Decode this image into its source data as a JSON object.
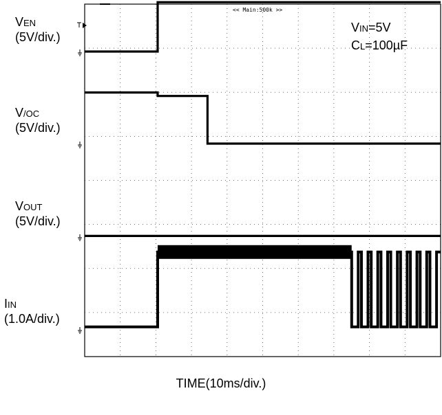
{
  "chart_data": {
    "type": "line",
    "title": "",
    "xlabel": "TIME(10ms/div.)",
    "trigger_label": "<< Main:500k >>",
    "conditions": [
      {
        "prefix": "V",
        "sub": "IN",
        "rest": "=5V"
      },
      {
        "prefix": "C",
        "sub": "L",
        "rest": "=100µF"
      }
    ],
    "x_divisions": 10,
    "y_divisions": 8,
    "x_unit": "ms",
    "x_per_div": 10,
    "grid": true,
    "channels": [
      {
        "name_prefix": "V",
        "name_sub": "EN",
        "scale": "(5V/div.)",
        "unit": "V",
        "per_div": 5,
        "points": [
          [
            0,
            0
          ],
          [
            20.5,
            0
          ],
          [
            20.5,
            5.6
          ],
          [
            100,
            5.6
          ]
        ]
      },
      {
        "name_prefix": "V",
        "name_sub": "/OC",
        "scale": "(5V/div.)",
        "unit": "V",
        "per_div": 5,
        "points": [
          [
            0,
            5.8
          ],
          [
            20.5,
            5.8
          ],
          [
            20.5,
            5.4
          ],
          [
            34.5,
            5.4
          ],
          [
            34.5,
            0
          ],
          [
            100,
            0
          ]
        ]
      },
      {
        "name_prefix": "V",
        "name_sub": "OUT",
        "scale": "(5V/div.)",
        "unit": "V",
        "per_div": 5,
        "points": [
          [
            0,
            0.05
          ],
          [
            100,
            0.05
          ]
        ]
      },
      {
        "name_prefix": "I",
        "name_sub": "IN",
        "scale": "(1.0A/div.)",
        "unit": "A",
        "per_div": 1.0,
        "points": [
          [
            0,
            0.05
          ],
          [
            20.5,
            0.05
          ],
          [
            20.5,
            1.75
          ],
          [
            75,
            1.75
          ]
        ],
        "pulse_start_ms": 75,
        "pulse_period_ms": 2.75,
        "pulse_high_ms": 0.9,
        "pulse_high": 1.75,
        "pulse_low": 0.05
      }
    ]
  }
}
